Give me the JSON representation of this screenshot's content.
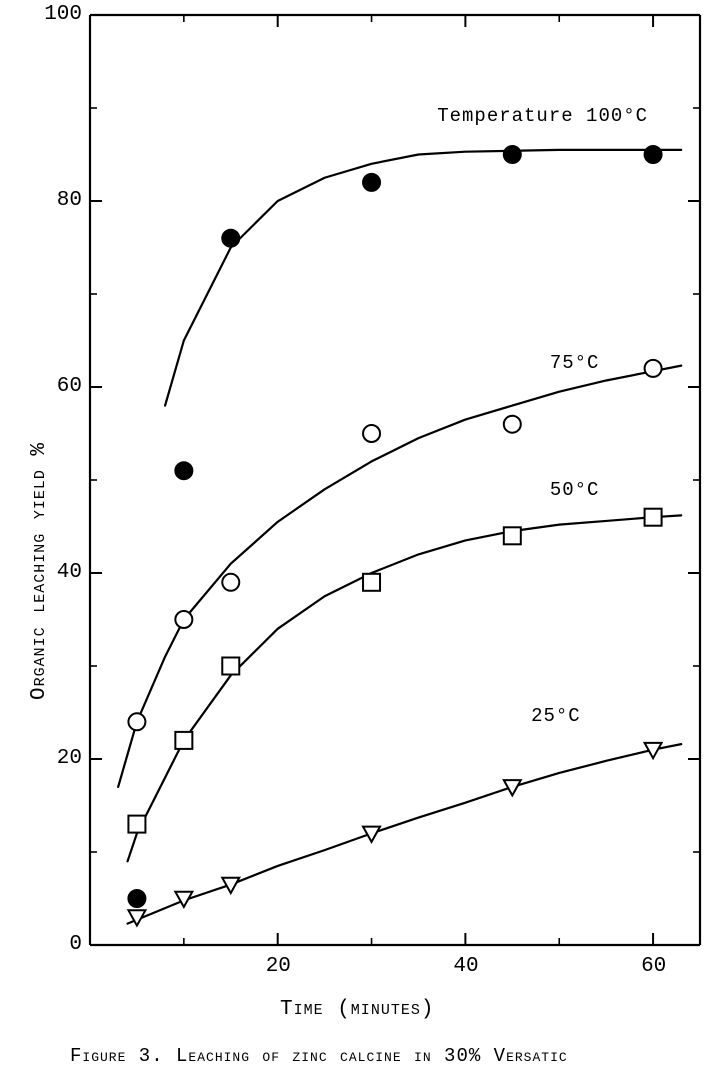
{
  "title": "Figure 3.  Leaching of zinc calcine in 30% Versatic",
  "xlabel": "Time (minutes)",
  "ylabel": "Organic leaching yield %",
  "xlim": [
    0,
    65
  ],
  "ylim": [
    0,
    100
  ],
  "xticks": [
    20,
    40,
    60
  ],
  "yticks": [
    0,
    20,
    40,
    60,
    80,
    100
  ],
  "axis_color": "#000000",
  "background_color": "#ffffff",
  "line_width": 2.2,
  "marker_size": 8.5,
  "axis_fontsize": 21,
  "tick_fontsize": 21,
  "label_fontsize": 19,
  "caption_fontsize": 19,
  "series": [
    {
      "name": "100C",
      "label": "Temperature 100°C",
      "marker": "filled-circle",
      "color": "#000000",
      "fill": "#000000",
      "curve": [
        [
          8,
          58
        ],
        [
          10,
          65
        ],
        [
          15,
          75
        ],
        [
          20,
          80
        ],
        [
          25,
          82.5
        ],
        [
          30,
          84
        ],
        [
          35,
          85
        ],
        [
          40,
          85.3
        ],
        [
          50,
          85.5
        ],
        [
          60,
          85.5
        ],
        [
          63,
          85.5
        ]
      ],
      "points": [
        [
          5,
          5
        ],
        [
          10,
          51
        ],
        [
          15,
          76
        ],
        [
          30,
          82
        ],
        [
          45,
          85
        ],
        [
          60,
          85
        ]
      ],
      "label_pos": [
        37,
        89
      ]
    },
    {
      "name": "75C",
      "label": "75°C",
      "marker": "open-circle",
      "color": "#000000",
      "fill": "#ffffff",
      "curve": [
        [
          3,
          17
        ],
        [
          5,
          24
        ],
        [
          8,
          31
        ],
        [
          10,
          35
        ],
        [
          15,
          41
        ],
        [
          20,
          45.5
        ],
        [
          25,
          49
        ],
        [
          30,
          52
        ],
        [
          35,
          54.5
        ],
        [
          40,
          56.5
        ],
        [
          45,
          58
        ],
        [
          50,
          59.5
        ],
        [
          55,
          60.7
        ],
        [
          60,
          61.7
        ],
        [
          63,
          62.3
        ]
      ],
      "points": [
        [
          5,
          24
        ],
        [
          10,
          35
        ],
        [
          15,
          39
        ],
        [
          30,
          55
        ],
        [
          45,
          56
        ],
        [
          60,
          62
        ]
      ],
      "label_pos": [
        49,
        62.5
      ]
    },
    {
      "name": "50C",
      "label": "50°C",
      "marker": "open-square",
      "color": "#000000",
      "fill": "#ffffff",
      "curve": [
        [
          4,
          9
        ],
        [
          5,
          12
        ],
        [
          8,
          18
        ],
        [
          10,
          22
        ],
        [
          15,
          29
        ],
        [
          20,
          34
        ],
        [
          25,
          37.5
        ],
        [
          30,
          40
        ],
        [
          35,
          42
        ],
        [
          40,
          43.5
        ],
        [
          45,
          44.5
        ],
        [
          50,
          45.2
        ],
        [
          55,
          45.6
        ],
        [
          60,
          46
        ],
        [
          63,
          46.2
        ]
      ],
      "points": [
        [
          5,
          13
        ],
        [
          10,
          22
        ],
        [
          15,
          30
        ],
        [
          30,
          39
        ],
        [
          45,
          44
        ],
        [
          60,
          46
        ]
      ],
      "label_pos": [
        49,
        48.8
      ]
    },
    {
      "name": "25C",
      "label": "25°C",
      "marker": "open-triangle-down",
      "color": "#000000",
      "fill": "#ffffff",
      "curve": [
        [
          4,
          2.3
        ],
        [
          10,
          4.8
        ],
        [
          15,
          6.5
        ],
        [
          20,
          8.5
        ],
        [
          25,
          10.2
        ],
        [
          30,
          12
        ],
        [
          35,
          13.7
        ],
        [
          40,
          15.3
        ],
        [
          45,
          17
        ],
        [
          50,
          18.5
        ],
        [
          55,
          19.8
        ],
        [
          60,
          21
        ],
        [
          63,
          21.6
        ]
      ],
      "points": [
        [
          5,
          3
        ],
        [
          10,
          5
        ],
        [
          15,
          6.5
        ],
        [
          30,
          12
        ],
        [
          45,
          17
        ],
        [
          60,
          21
        ]
      ],
      "label_pos": [
        47,
        24.5
      ]
    }
  ]
}
